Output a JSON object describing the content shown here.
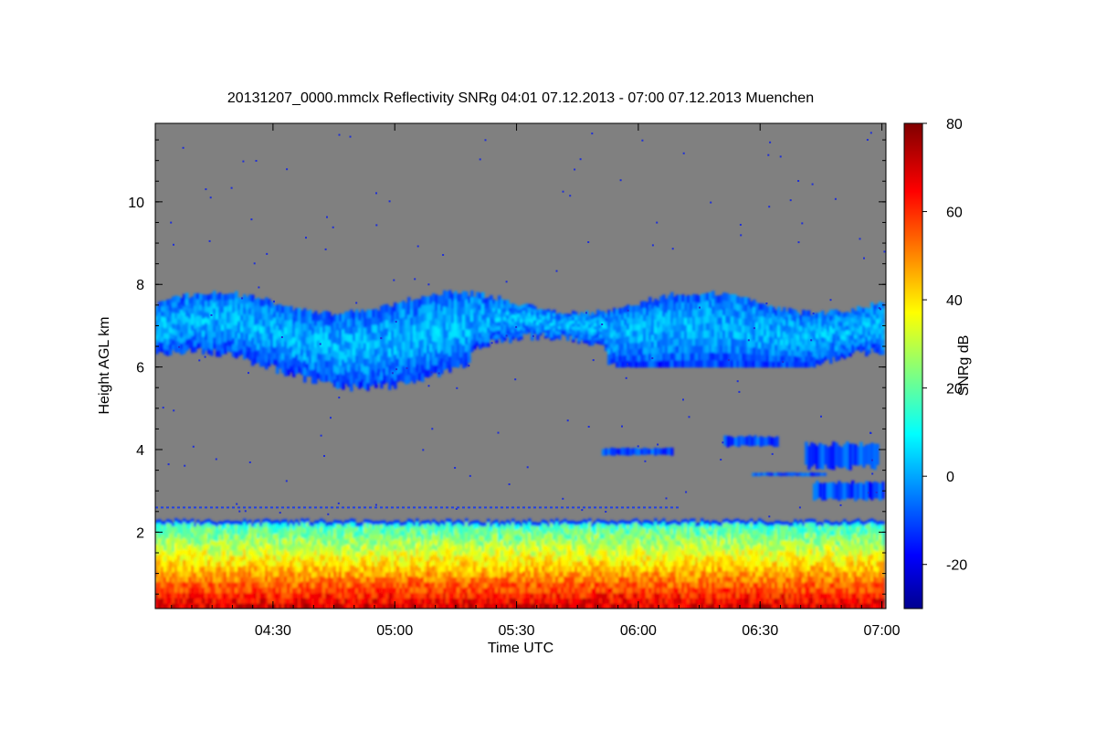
{
  "chart_data": {
    "type": "heatmap",
    "title": "20131207_0000.mmclx Reflectivity SNRg   04:01 07.12.2013 - 07:00 07.12.2013 Muenchen",
    "xlabel": "Time UTC",
    "ylabel": "Height AGL km",
    "colorbar_label": "SNRg dB",
    "xlim": [
      "04:01",
      "07:01"
    ],
    "ylim": [
      0.15,
      11.9
    ],
    "x_ticks": [
      "04:30",
      "05:00",
      "05:30",
      "06:00",
      "06:30",
      "07:00"
    ],
    "y_ticks": [
      2,
      4,
      6,
      8,
      10
    ],
    "colorbar_range": [
      -30,
      80
    ],
    "colorbar_ticks": [
      -20,
      0,
      20,
      40,
      60,
      80
    ],
    "colormap": "jet",
    "background_color": "#808080",
    "layers": [
      {
        "name": "boundary layer",
        "height_km": [
          0.15,
          2.3
        ],
        "snr_db_range": [
          5,
          70
        ],
        "time_range": [
          "04:01",
          "07:00"
        ]
      },
      {
        "name": "upper cloud",
        "height_km": [
          5.4,
          7.8
        ],
        "snr_db_range": [
          -20,
          10
        ],
        "time_range": [
          "04:01",
          "07:00"
        ]
      },
      {
        "name": "mid-level cloud fragments",
        "height_km": [
          2.8,
          4.3
        ],
        "snr_db_range": [
          -20,
          5
        ],
        "time_range": [
          "05:51",
          "07:00"
        ]
      }
    ]
  }
}
